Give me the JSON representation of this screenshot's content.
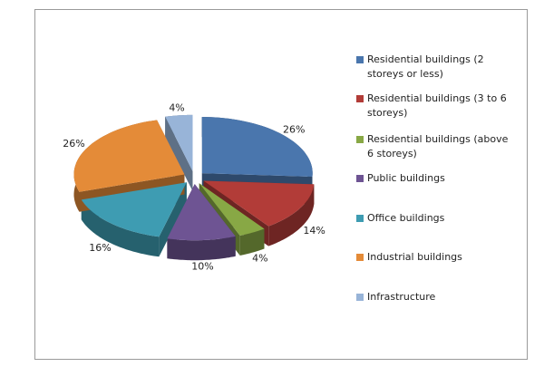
{
  "chart_data": {
    "type": "pie",
    "categories": [
      "Residential buildings (2 storeys or less)",
      "Residential buildings (3 to 6 storeys)",
      "Residential buildings (above 6 storeys)",
      "Public buildings",
      "Office buildings",
      "Industrial buildings",
      "Infrastructure"
    ],
    "values": [
      26,
      14,
      4,
      10,
      16,
      26,
      4
    ],
    "value_labels": [
      "26%",
      "14%",
      "4%",
      "10%",
      "16%",
      "26%",
      "4%"
    ],
    "colors": [
      "#4a76ad",
      "#b23c38",
      "#88a845",
      "#6e5493",
      "#3e9cb2",
      "#e48b38",
      "#98b4d8"
    ]
  }
}
